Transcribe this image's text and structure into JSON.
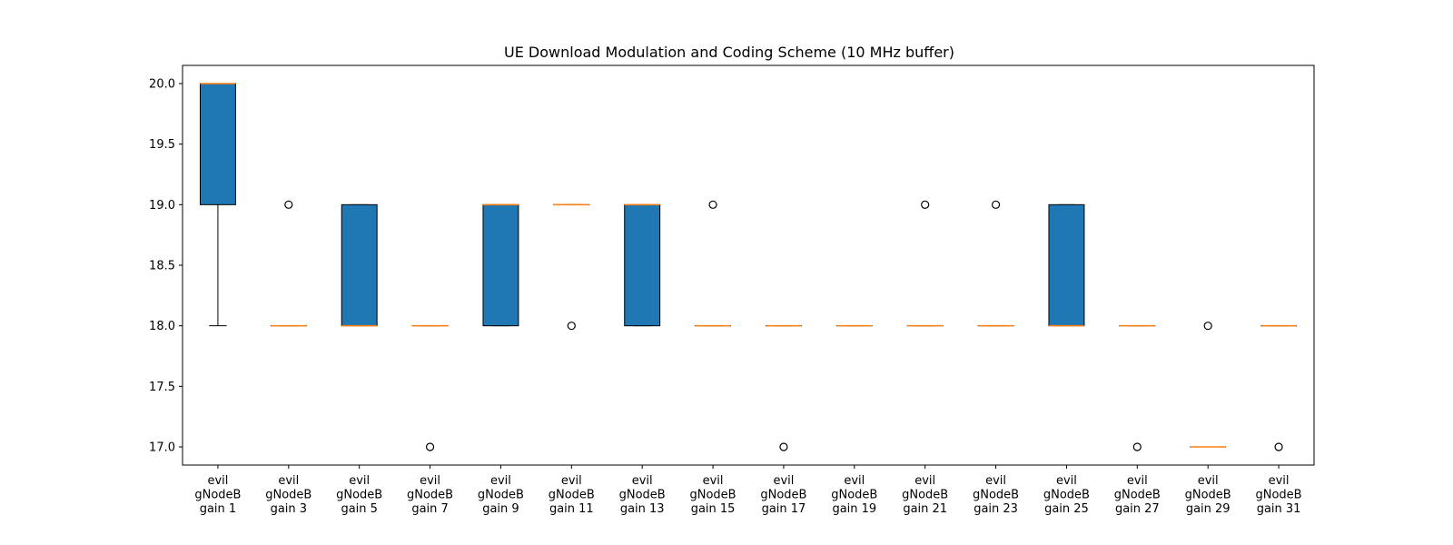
{
  "chart_data": {
    "type": "box",
    "title": "UE Download Modulation and Coding Scheme (10 MHz buffer)",
    "xlabel": "",
    "ylabel": "",
    "ylim": [
      16.85,
      20.15
    ],
    "yticks": [
      17.0,
      17.5,
      18.0,
      18.5,
      19.0,
      19.5,
      20.0
    ],
    "ytick_labels": [
      "17.0",
      "17.5",
      "18.0",
      "18.5",
      "19.0",
      "19.5",
      "20.0"
    ],
    "grid": false,
    "box_color": "#1f77b4",
    "median_color": "#ff7f0e",
    "categories": [
      [
        "evil",
        "gNodeB",
        "gain 1"
      ],
      [
        "evil",
        "gNodeB",
        "gain 3"
      ],
      [
        "evil",
        "gNodeB",
        "gain 5"
      ],
      [
        "evil",
        "gNodeB",
        "gain 7"
      ],
      [
        "evil",
        "gNodeB",
        "gain 9"
      ],
      [
        "evil",
        "gNodeB",
        "gain 11"
      ],
      [
        "evil",
        "gNodeB",
        "gain 13"
      ],
      [
        "evil",
        "gNodeB",
        "gain 15"
      ],
      [
        "evil",
        "gNodeB",
        "gain 17"
      ],
      [
        "evil",
        "gNodeB",
        "gain 19"
      ],
      [
        "evil",
        "gNodeB",
        "gain 21"
      ],
      [
        "evil",
        "gNodeB",
        "gain 23"
      ],
      [
        "evil",
        "gNodeB",
        "gain 25"
      ],
      [
        "evil",
        "gNodeB",
        "gain 27"
      ],
      [
        "evil",
        "gNodeB",
        "gain 29"
      ],
      [
        "evil",
        "gNodeB",
        "gain 31"
      ]
    ],
    "boxes": [
      {
        "whislo": 18,
        "q1": 19,
        "med": 20,
        "q3": 20,
        "whishi": 20,
        "fliers": []
      },
      {
        "whislo": 18,
        "q1": 18,
        "med": 18,
        "q3": 18,
        "whishi": 18,
        "fliers": [
          19
        ]
      },
      {
        "whislo": 18,
        "q1": 18,
        "med": 18,
        "q3": 19,
        "whishi": 19,
        "fliers": []
      },
      {
        "whislo": 18,
        "q1": 18,
        "med": 18,
        "q3": 18,
        "whishi": 18,
        "fliers": [
          17
        ]
      },
      {
        "whislo": 18,
        "q1": 18,
        "med": 19,
        "q3": 19,
        "whishi": 19,
        "fliers": []
      },
      {
        "whislo": 19,
        "q1": 19,
        "med": 19,
        "q3": 19,
        "whishi": 19,
        "fliers": [
          18
        ]
      },
      {
        "whislo": 18,
        "q1": 18,
        "med": 19,
        "q3": 19,
        "whishi": 19,
        "fliers": []
      },
      {
        "whislo": 18,
        "q1": 18,
        "med": 18,
        "q3": 18,
        "whishi": 18,
        "fliers": [
          19
        ]
      },
      {
        "whislo": 18,
        "q1": 18,
        "med": 18,
        "q3": 18,
        "whishi": 18,
        "fliers": [
          17
        ]
      },
      {
        "whislo": 18,
        "q1": 18,
        "med": 18,
        "q3": 18,
        "whishi": 18,
        "fliers": []
      },
      {
        "whislo": 18,
        "q1": 18,
        "med": 18,
        "q3": 18,
        "whishi": 18,
        "fliers": [
          19
        ]
      },
      {
        "whislo": 18,
        "q1": 18,
        "med": 18,
        "q3": 18,
        "whishi": 18,
        "fliers": [
          19
        ]
      },
      {
        "whislo": 18,
        "q1": 18,
        "med": 18,
        "q3": 19,
        "whishi": 19,
        "fliers": []
      },
      {
        "whislo": 18,
        "q1": 18,
        "med": 18,
        "q3": 18,
        "whishi": 18,
        "fliers": [
          17
        ]
      },
      {
        "whislo": 17,
        "q1": 17,
        "med": 17,
        "q3": 17,
        "whishi": 17,
        "fliers": [
          18
        ]
      },
      {
        "whislo": 18,
        "q1": 18,
        "med": 18,
        "q3": 18,
        "whishi": 18,
        "fliers": [
          17
        ]
      }
    ]
  }
}
